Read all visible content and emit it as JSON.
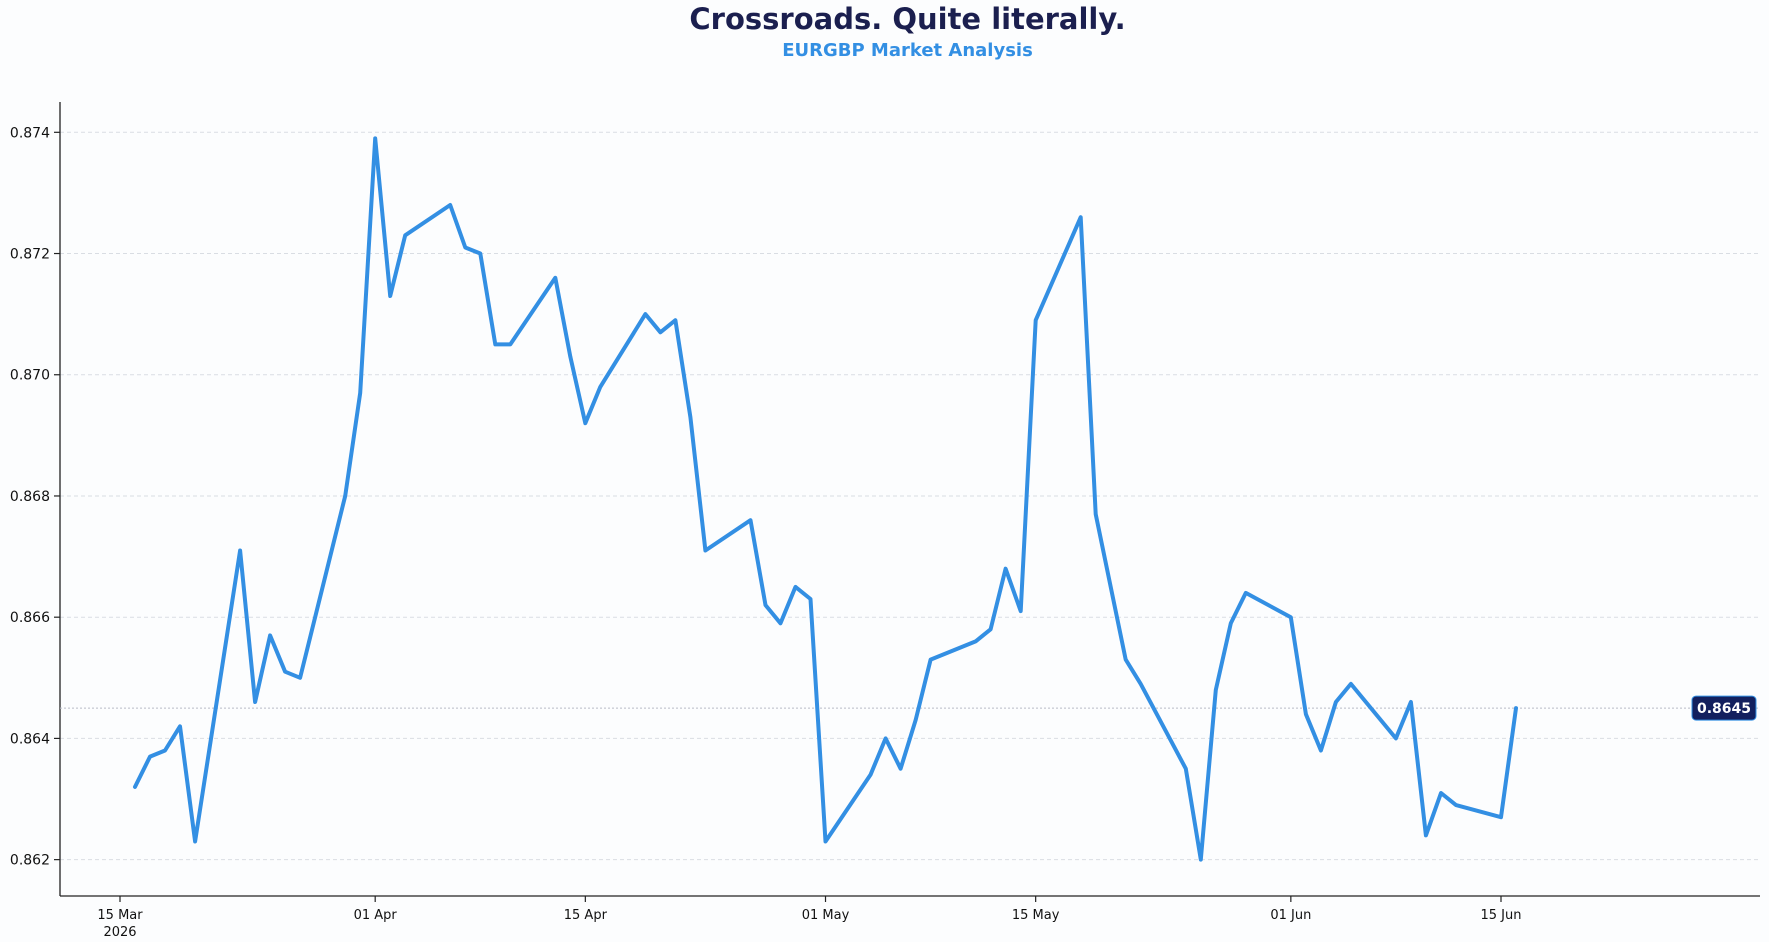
{
  "chart_data": {
    "type": "line",
    "title": "Crossroads. Quite literally.",
    "subtitle": "EURGBP Market Analysis",
    "xlabel": "",
    "ylabel": "",
    "xlim": [
      "2026-03-15",
      "2026-06-21"
    ],
    "ylim": [
      0.8614,
      0.8745
    ],
    "x_ticks": [
      {
        "date": "2026-03-15",
        "label": "15 Mar",
        "sublabel": "2026"
      },
      {
        "date": "2026-04-01",
        "label": "01 Apr",
        "sublabel": ""
      },
      {
        "date": "2026-04-15",
        "label": "15 Apr",
        "sublabel": ""
      },
      {
        "date": "2026-05-01",
        "label": "01 May",
        "sublabel": ""
      },
      {
        "date": "2026-05-15",
        "label": "15 May",
        "sublabel": ""
      },
      {
        "date": "2026-06-01",
        "label": "01 Jun",
        "sublabel": ""
      },
      {
        "date": "2026-06-15",
        "label": "15 Jun",
        "sublabel": ""
      }
    ],
    "y_ticks": [
      "0.862",
      "0.864",
      "0.866",
      "0.868",
      "0.870",
      "0.872",
      "0.874"
    ],
    "grid": "horizontal dashed",
    "colors": {
      "line": "#338fe3",
      "title": "#1b1f4f",
      "subtitle": "#338fe3",
      "badge": "#13205e",
      "grid": "#d9dde3"
    },
    "last_value_label": "0.8645",
    "last_value": 0.8645,
    "series": [
      {
        "x": [
          "2026-03-16",
          "2026-03-17",
          "2026-03-18",
          "2026-03-19",
          "2026-03-20",
          "2026-03-23",
          "2026-03-24",
          "2026-03-25",
          "2026-03-26",
          "2026-03-27",
          "2026-03-30",
          "2026-03-31",
          "2026-04-01",
          "2026-04-02",
          "2026-04-03",
          "2026-04-06",
          "2026-04-07",
          "2026-04-08",
          "2026-04-09",
          "2026-04-10",
          "2026-04-13",
          "2026-04-14",
          "2026-04-15",
          "2026-04-16",
          "2026-04-19",
          "2026-04-20",
          "2026-04-21",
          "2026-04-22",
          "2026-04-23",
          "2026-04-26",
          "2026-04-27",
          "2026-04-28",
          "2026-04-29",
          "2026-04-30",
          "2026-05-01",
          "2026-05-04",
          "2026-05-05",
          "2026-05-06",
          "2026-05-07",
          "2026-05-08",
          "2026-05-11",
          "2026-05-12",
          "2026-05-13",
          "2026-05-14",
          "2026-05-15",
          "2026-05-18",
          "2026-05-19",
          "2026-05-20",
          "2026-05-21",
          "2026-05-22",
          "2026-05-25",
          "2026-05-26",
          "2026-05-27",
          "2026-05-28",
          "2026-05-29",
          "2026-06-01",
          "2026-06-02",
          "2026-06-03",
          "2026-06-04",
          "2026-06-05",
          "2026-06-08",
          "2026-06-09",
          "2026-06-10",
          "2026-06-11",
          "2026-06-12",
          "2026-06-15",
          "2026-06-16"
        ],
        "values": [
          0.8632,
          0.8637,
          0.8638,
          0.8642,
          0.8623,
          0.8671,
          0.8646,
          0.8657,
          0.8651,
          0.865,
          0.868,
          0.8697,
          0.8739,
          0.8713,
          0.8723,
          0.8728,
          0.8721,
          0.872,
          0.8705,
          0.8705,
          0.8716,
          0.8703,
          0.8692,
          0.8698,
          0.871,
          0.8707,
          0.8709,
          0.8693,
          0.8671,
          0.8676,
          0.8662,
          0.8659,
          0.8665,
          0.8663,
          0.8623,
          0.8634,
          0.864,
          0.8635,
          0.8643,
          0.8653,
          0.8656,
          0.8658,
          0.8668,
          0.8661,
          0.8709,
          0.8726,
          0.8677,
          0.8665,
          0.8653,
          0.8649,
          0.8635,
          0.862,
          0.8648,
          0.8659,
          0.8664,
          0.866,
          0.8644,
          0.8638,
          0.8646,
          0.8649,
          0.864,
          0.8646,
          0.8624,
          0.8631,
          0.8629,
          0.8627,
          0.8645
        ]
      }
    ]
  }
}
